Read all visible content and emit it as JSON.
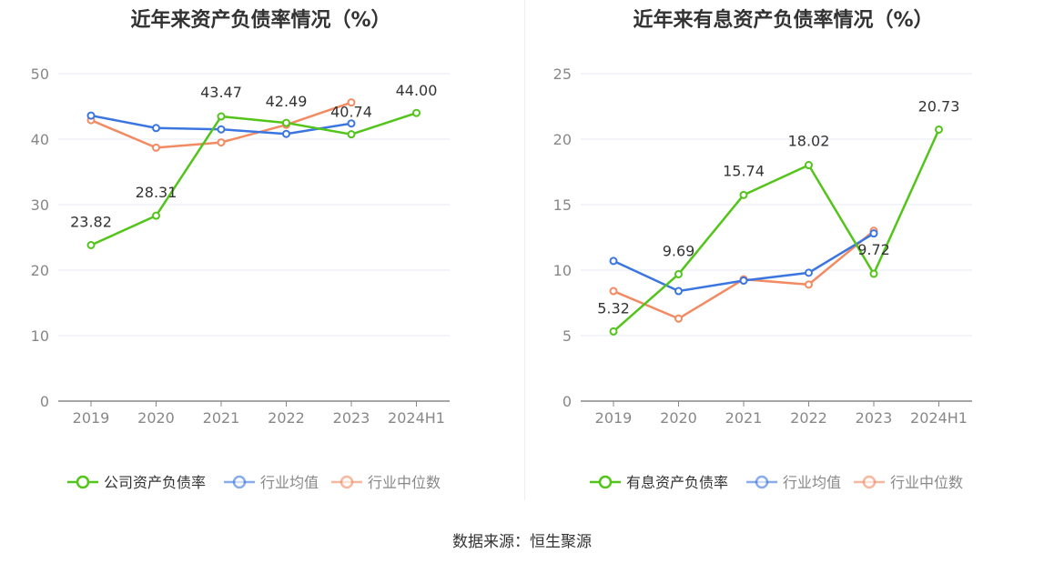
{
  "source": "数据来源：恒生聚源",
  "colors": {
    "main": "#52c41a",
    "avg": "#3b76e0",
    "median": "#f28a62"
  },
  "chart_data": [
    {
      "type": "line",
      "title": "近年来资产负债率情况（%）",
      "categories": [
        "2019",
        "2020",
        "2021",
        "2022",
        "2023",
        "2024H1"
      ],
      "ylim": [
        0,
        50
      ],
      "yticks": [
        0,
        10,
        20,
        30,
        40,
        50
      ],
      "grid": true,
      "legend_position": "bottom",
      "series": [
        {
          "name": "公司资产负债率",
          "key": "main",
          "values": [
            23.82,
            28.31,
            43.47,
            42.49,
            40.74,
            44.0
          ],
          "labels": [
            "23.82",
            "28.31",
            "43.47",
            "42.49",
            "40.74",
            "44.00"
          ]
        },
        {
          "name": "行业均值",
          "key": "avg",
          "values": [
            43.6,
            41.7,
            41.5,
            40.8,
            42.4,
            null
          ]
        },
        {
          "name": "行业中位数",
          "key": "median",
          "values": [
            42.9,
            38.7,
            39.5,
            42.2,
            45.6,
            null
          ]
        }
      ]
    },
    {
      "type": "line",
      "title": "近年来有息资产负债率情况（%）",
      "categories": [
        "2019",
        "2020",
        "2021",
        "2022",
        "2023",
        "2024H1"
      ],
      "ylim": [
        0,
        25
      ],
      "yticks": [
        0,
        5,
        10,
        15,
        20,
        25
      ],
      "grid": true,
      "legend_position": "bottom",
      "series": [
        {
          "name": "有息资产负债率",
          "key": "main",
          "values": [
            5.32,
            9.69,
            15.74,
            18.02,
            9.72,
            20.73
          ],
          "labels": [
            "5.32",
            "9.69",
            "15.74",
            "18.02",
            "9.72",
            "20.73"
          ]
        },
        {
          "name": "行业均值",
          "key": "avg",
          "values": [
            10.7,
            8.4,
            9.2,
            9.8,
            12.8,
            null
          ]
        },
        {
          "name": "行业中位数",
          "key": "median",
          "values": [
            8.4,
            6.3,
            9.3,
            8.9,
            13.0,
            null
          ]
        }
      ]
    }
  ]
}
